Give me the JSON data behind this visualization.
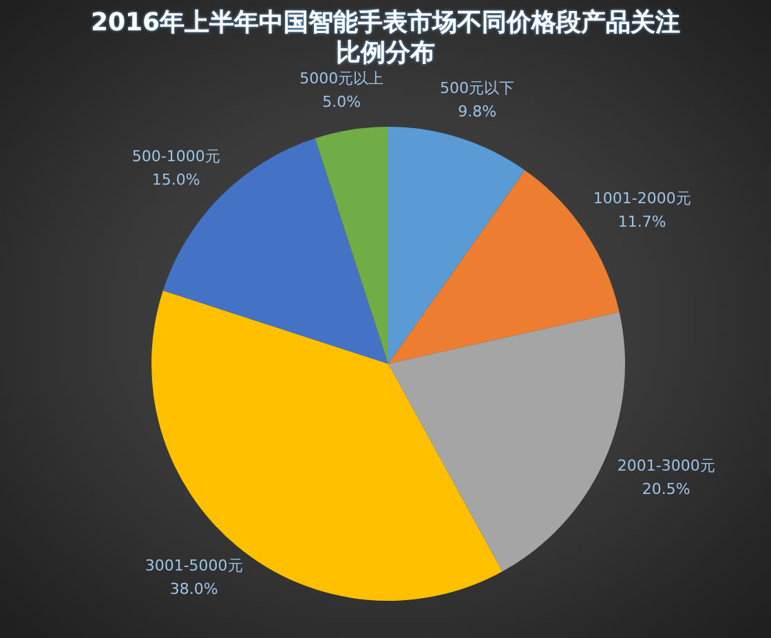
{
  "chart_data": {
    "type": "pie",
    "title": "2016年上半年中国智能手表市场不同价格段产品关注比例分布",
    "categories": [
      "500元以下",
      "1001-2000元",
      "2001-3000元",
      "3001-5000元",
      "500-1000元",
      "5000元以上"
    ],
    "values": [
      9.8,
      11.7,
      20.5,
      38.0,
      15.0,
      5.0
    ],
    "colors": [
      "#5b9bd5",
      "#ed7d31",
      "#a5a5a5",
      "#ffc000",
      "#4472c4",
      "#70ad47"
    ],
    "value_labels": [
      "9.8%",
      "11.7%",
      "20.5%",
      "38.0%",
      "15.0%",
      "5.0%"
    ]
  }
}
